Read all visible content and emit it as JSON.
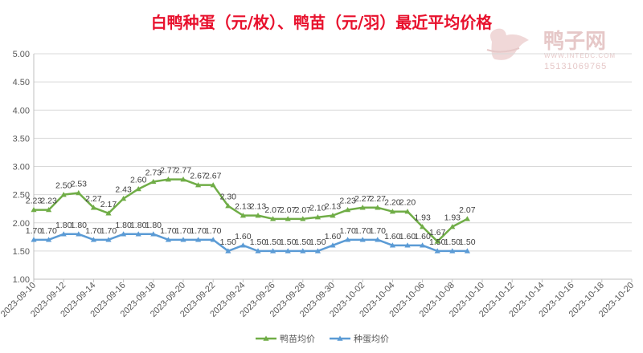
{
  "chart_data": {
    "type": "line",
    "title": "白鸭种蛋（元/枚）、鸭苗（元/羽）最近平均价格",
    "ylim": [
      1.0,
      5.0
    ],
    "yticks": [
      "1.00",
      "1.50",
      "2.00",
      "2.50",
      "3.00",
      "3.50",
      "4.00",
      "4.50",
      "5.00"
    ],
    "xlim": [
      "2023-09-10",
      "2023-10-20"
    ],
    "xticks": [
      "2023-09-10",
      "2023-09-12",
      "2023-09-14",
      "2023-09-16",
      "2023-09-18",
      "2023-09-20",
      "2023-09-22",
      "2023-09-24",
      "2023-09-26",
      "2023-09-28",
      "2023-09-30",
      "2023-10-02",
      "2023-10-04",
      "2023-10-06",
      "2023-10-08",
      "2023-10-10",
      "2023-10-12",
      "2023-10-14",
      "2023-10-16",
      "2023-10-18",
      "2023-10-20"
    ],
    "x": [
      "2023-09-10",
      "2023-09-11",
      "2023-09-12",
      "2023-09-13",
      "2023-09-14",
      "2023-09-15",
      "2023-09-16",
      "2023-09-17",
      "2023-09-18",
      "2023-09-19",
      "2023-09-20",
      "2023-09-21",
      "2023-09-22",
      "2023-09-23",
      "2023-09-24",
      "2023-09-25",
      "2023-09-26",
      "2023-09-27",
      "2023-09-28",
      "2023-09-29",
      "2023-09-30",
      "2023-10-01",
      "2023-10-02",
      "2023-10-03",
      "2023-10-04",
      "2023-10-05",
      "2023-10-06",
      "2023-10-07",
      "2023-10-08",
      "2023-10-09"
    ],
    "series": [
      {
        "name": "鸭苗均价",
        "color": "#70ad47",
        "marker": "triangle",
        "values": [
          2.23,
          2.23,
          2.5,
          2.53,
          2.27,
          2.17,
          2.43,
          2.6,
          2.73,
          2.77,
          2.77,
          2.67,
          2.67,
          2.3,
          2.13,
          2.13,
          2.07,
          2.07,
          2.07,
          2.1,
          2.13,
          2.23,
          2.27,
          2.27,
          2.2,
          2.2,
          1.93,
          1.67,
          1.93,
          2.07
        ],
        "labels": [
          "2.23",
          "2.23",
          "2.50",
          "2.53",
          "2.27",
          "2.17",
          "2.43",
          "2.60",
          "2.73",
          "2.77",
          "2.77",
          "2.67",
          "2.67",
          "2.30",
          "2.13",
          "2.13",
          "2.07",
          "2.07",
          "2.07",
          "2.10",
          "2.13",
          "2.23",
          "2.27",
          "2.27",
          "2.20",
          "2.20",
          "1.93",
          "1.67",
          "1.93",
          "2.07"
        ]
      },
      {
        "name": "种蛋均价",
        "color": "#5b9bd5",
        "marker": "triangle",
        "values": [
          1.7,
          1.7,
          1.8,
          1.8,
          1.7,
          1.7,
          1.8,
          1.8,
          1.8,
          1.7,
          1.7,
          1.7,
          1.7,
          1.5,
          1.6,
          1.5,
          1.5,
          1.5,
          1.5,
          1.5,
          1.6,
          1.7,
          1.7,
          1.7,
          1.6,
          1.6,
          1.6,
          1.5,
          1.5,
          1.5
        ],
        "labels": [
          "1.70",
          "1.70",
          "1.80",
          "1.80",
          "1.70",
          "1.70",
          "1.80",
          "1.80",
          "1.80",
          "1.70",
          "1.70",
          "1.70",
          "1.70",
          "1.50",
          "1.60",
          "1.50",
          "1.50",
          "1.50",
          "1.50",
          "1.50",
          "1.60",
          "1.70",
          "1.70",
          "1.70",
          "1.60",
          "1.60",
          "1.60",
          "1.50",
          "1.50",
          "1.50"
        ]
      }
    ],
    "grid": true,
    "legend": "bottom"
  },
  "watermark": {
    "name": "鸭子网",
    "url": "WWW.INTEDC.COM",
    "phone": "15131069765"
  }
}
